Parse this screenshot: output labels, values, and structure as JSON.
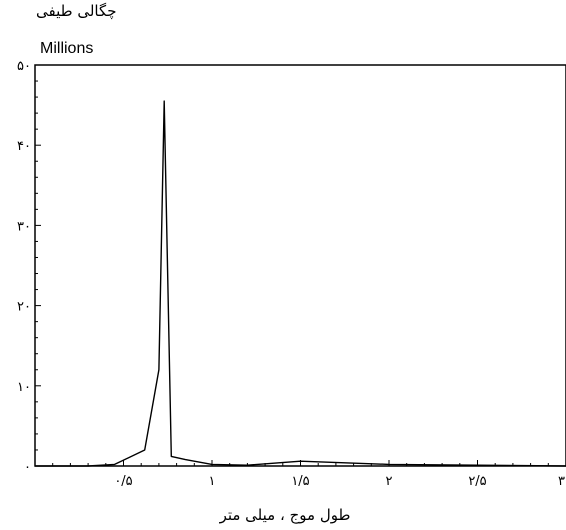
{
  "chart_data": {
    "type": "line",
    "ylabel": "چگالی طیفی",
    "yunit": "Millions",
    "xlabel": "طول موج ، میلی متر",
    "xlim": [
      0,
      3
    ],
    "ylim": [
      0,
      50
    ],
    "x_tick_values": [
      0.5,
      1,
      1.5,
      2,
      2.5,
      3
    ],
    "x_tick_labels": [
      "۰/۵",
      "۱",
      "۱/۵",
      "۲",
      "۲/۵",
      "۳"
    ],
    "y_tick_values": [
      0,
      10,
      20,
      30,
      40,
      50
    ],
    "y_tick_labels": [
      "۰",
      "۱۰",
      "۲۰",
      "۳۰",
      "۴۰",
      "۵۰"
    ],
    "grid": false,
    "series": [
      {
        "x": [
          0,
          0.3,
          0.45,
          0.62,
          0.7,
          0.73,
          0.77,
          0.85,
          1.0,
          1.2,
          1.5,
          2.0,
          3.0
        ],
        "y": [
          0,
          0,
          0.2,
          2.0,
          12.0,
          45.5,
          1.2,
          0.8,
          0.2,
          0.1,
          0.6,
          0.2,
          0
        ]
      }
    ],
    "colors": {
      "line": "#000000",
      "axis": "#000000"
    }
  }
}
